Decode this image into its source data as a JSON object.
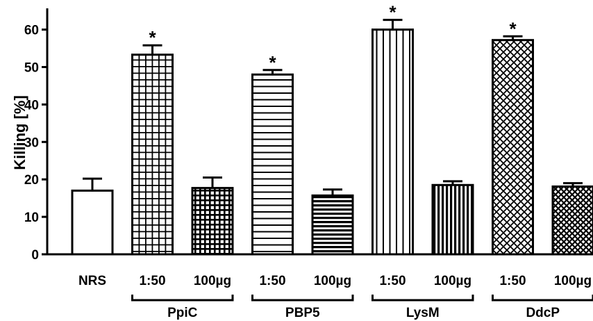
{
  "chart_data": {
    "type": "bar",
    "ylabel": "Killing [%]",
    "ylim": [
      0,
      65
    ],
    "yticks": [
      0,
      10,
      20,
      30,
      40,
      50,
      60
    ],
    "grid": false,
    "categories": [
      "NRS",
      "1:50",
      "100µg",
      "1:50",
      "100µg",
      "1:50",
      "100µg",
      "1:50",
      "100µg"
    ],
    "values": [
      17.0,
      53.3,
      17.7,
      48.0,
      15.7,
      60.0,
      18.5,
      57.2,
      18.1
    ],
    "errors": [
      3.2,
      2.5,
      2.8,
      1.2,
      1.6,
      2.6,
      1.0,
      1.0,
      0.9
    ],
    "significance": [
      "",
      "*",
      "",
      "*",
      "",
      "*",
      "",
      "*",
      ""
    ],
    "patterns": [
      "none",
      "grid",
      "grid-dense",
      "hlines",
      "hlines-dense",
      "vlines",
      "vlines-dense",
      "cross",
      "cross-dense"
    ],
    "groups": [
      {
        "label": "PpiC",
        "members": [
          1,
          2
        ]
      },
      {
        "label": "PBP5",
        "members": [
          3,
          4
        ]
      },
      {
        "label": "LysM",
        "members": [
          5,
          6
        ]
      },
      {
        "label": "DdcP",
        "members": [
          7,
          8
        ]
      }
    ],
    "colors": {
      "bar_stroke": "#000000",
      "bar_fill": "#ffffff",
      "pattern": "#000000"
    }
  }
}
